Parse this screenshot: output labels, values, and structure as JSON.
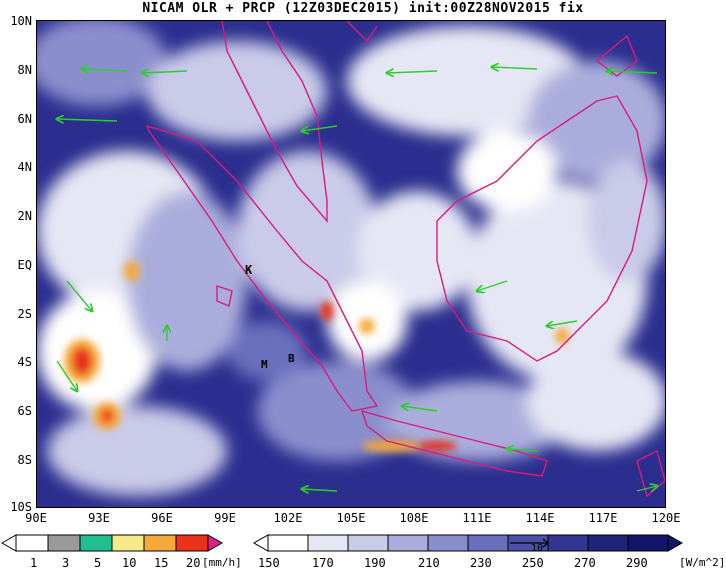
{
  "title": "NICAM OLR + PRCP (12Z03DEC2015) init:00Z28NOV2015 fix",
  "lat_labels": [
    "10N",
    "8N",
    "6N",
    "4N",
    "2N",
    "EQ",
    "2S",
    "4S",
    "6S",
    "8S",
    "10S"
  ],
  "lon_labels": [
    "90E",
    "93E",
    "96E",
    "99E",
    "102E",
    "105E",
    "108E",
    "111E",
    "114E",
    "117E",
    "120E"
  ],
  "place_labels": {
    "k": "K",
    "m": "M",
    "b": "B"
  },
  "prcp_colorbar": {
    "ticks": [
      "1",
      "3",
      "5",
      "10",
      "15",
      "20"
    ],
    "unit": "[mm/h]",
    "colors": [
      "#9a9a9a",
      "#1fbf8f",
      "#f5e98a",
      "#f4a93a",
      "#e8321a",
      "#e0208a"
    ]
  },
  "olr_colorbar": {
    "ticks": [
      "150",
      "170",
      "190",
      "210",
      "230",
      "250",
      "270",
      "290"
    ],
    "unit": "[W/m^2]",
    "colors": [
      "#ffffff",
      "#e6e7f4",
      "#c9cbe8",
      "#aaaddb",
      "#8a8ecd",
      "#6a6fbd",
      "#4b50a9",
      "#323694",
      "#1f2379",
      "#12156a"
    ]
  },
  "vector_ref_label": "10"
}
